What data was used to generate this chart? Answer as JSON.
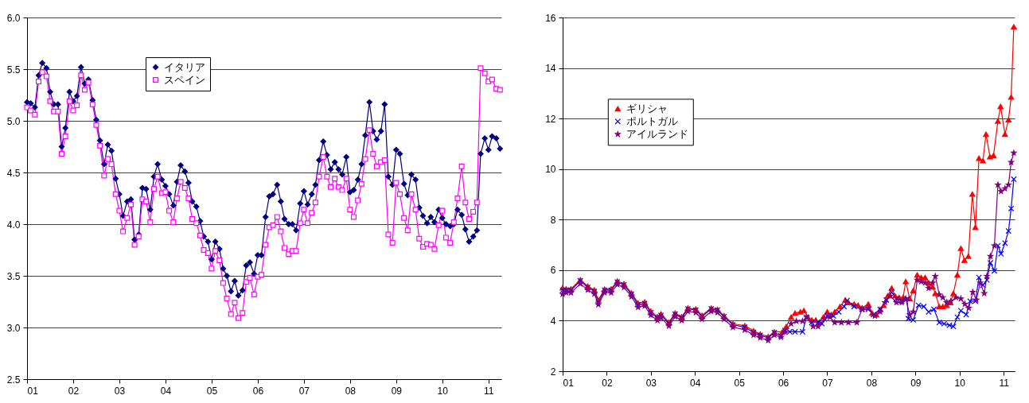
{
  "chart_data": [
    {
      "type": "line",
      "x": [
        2001.0,
        2001.08,
        2001.17,
        2001.25,
        2001.33,
        2001.42,
        2001.5,
        2001.58,
        2001.67,
        2001.75,
        2001.83,
        2001.92,
        2002.0,
        2002.08,
        2002.17,
        2002.25,
        2002.33,
        2002.42,
        2002.5,
        2002.58,
        2002.67,
        2002.75,
        2002.83,
        2002.92,
        2003.0,
        2003.08,
        2003.17,
        2003.25,
        2003.33,
        2003.42,
        2003.5,
        2003.58,
        2003.67,
        2003.75,
        2003.83,
        2003.92,
        2004.0,
        2004.08,
        2004.17,
        2004.25,
        2004.33,
        2004.42,
        2004.5,
        2004.58,
        2004.67,
        2004.75,
        2004.83,
        2004.92,
        2005.0,
        2005.08,
        2005.17,
        2005.25,
        2005.33,
        2005.42,
        2005.5,
        2005.58,
        2005.67,
        2005.75,
        2005.83,
        2005.92,
        2006.0,
        2006.08,
        2006.17,
        2006.25,
        2006.33,
        2006.42,
        2006.5,
        2006.58,
        2006.67,
        2006.75,
        2006.83,
        2006.92,
        2007.0,
        2007.08,
        2007.17,
        2007.25,
        2007.33,
        2007.42,
        2007.5,
        2007.58,
        2007.67,
        2007.75,
        2007.83,
        2007.92,
        2008.0,
        2008.08,
        2008.17,
        2008.25,
        2008.33,
        2008.42,
        2008.5,
        2008.58,
        2008.67,
        2008.75,
        2008.83,
        2008.92,
        2009.0,
        2009.08,
        2009.17,
        2009.25,
        2009.33,
        2009.42,
        2009.5,
        2009.58,
        2009.67,
        2009.75,
        2009.83,
        2009.92,
        2010.0,
        2010.08,
        2010.17,
        2010.25,
        2010.33,
        2010.42,
        2010.5,
        2010.58,
        2010.67,
        2010.75,
        2010.83,
        2010.92,
        2011.0,
        2011.08,
        2011.17,
        2011.25
      ],
      "series": [
        {
          "name": "イタリア",
          "color": "#000080",
          "marker": "diamond",
          "values": [
            5.18,
            5.17,
            5.13,
            5.44,
            5.56,
            5.51,
            5.28,
            5.16,
            5.16,
            4.75,
            4.93,
            5.28,
            5.19,
            5.24,
            5.52,
            5.36,
            5.4,
            5.2,
            5.01,
            4.81,
            4.58,
            4.77,
            4.71,
            4.44,
            4.29,
            4.08,
            4.22,
            4.24,
            3.85,
            3.9,
            4.35,
            4.34,
            4.14,
            4.46,
            4.58,
            4.43,
            4.37,
            4.29,
            4.18,
            4.41,
            4.57,
            4.51,
            4.4,
            4.22,
            4.17,
            4.03,
            3.88,
            3.83,
            3.66,
            3.83,
            3.76,
            3.57,
            3.5,
            3.35,
            3.45,
            3.31,
            3.36,
            3.6,
            3.63,
            3.52,
            3.7,
            3.7,
            4.07,
            4.27,
            4.29,
            4.38,
            4.22,
            4.05,
            4.0,
            4.0,
            3.94,
            4.2,
            4.32,
            4.19,
            4.29,
            4.38,
            4.62,
            4.8,
            4.67,
            4.53,
            4.6,
            4.53,
            4.48,
            4.65,
            4.31,
            4.33,
            4.43,
            4.58,
            4.86,
            5.18,
            4.9,
            4.82,
            4.9,
            5.16,
            4.46,
            4.38,
            4.72,
            4.68,
            4.39,
            4.28,
            4.48,
            4.43,
            4.16,
            4.08,
            4.01,
            4.07,
            4.02,
            4.14,
            4.06,
            4.0,
            3.98,
            4.0,
            4.14,
            4.09,
            3.95,
            3.83,
            3.88,
            3.94,
            4.68,
            4.83,
            4.72,
            4.85,
            4.83,
            4.73
          ]
        },
        {
          "name": "スペイン",
          "color": "#ff00ff",
          "marker": "square",
          "values": [
            5.13,
            5.1,
            5.06,
            5.38,
            5.47,
            5.43,
            5.19,
            5.09,
            5.09,
            4.68,
            4.85,
            5.19,
            5.1,
            5.15,
            5.44,
            5.3,
            5.37,
            5.16,
            4.96,
            4.76,
            4.47,
            4.63,
            4.58,
            4.29,
            4.13,
            3.93,
            4.06,
            4.19,
            3.8,
            3.88,
            4.24,
            4.22,
            4.02,
            4.34,
            4.46,
            4.3,
            4.31,
            4.13,
            4.02,
            4.25,
            4.41,
            4.35,
            4.25,
            4.05,
            4.01,
            3.89,
            3.75,
            3.72,
            3.57,
            3.74,
            3.65,
            3.43,
            3.28,
            3.13,
            3.24,
            3.09,
            3.14,
            3.44,
            3.48,
            3.32,
            3.49,
            3.51,
            3.8,
            3.97,
            3.99,
            4.07,
            3.93,
            3.77,
            3.71,
            3.74,
            3.74,
            4.01,
            4.14,
            4.01,
            4.11,
            4.21,
            4.46,
            4.65,
            4.46,
            4.36,
            4.44,
            4.36,
            4.33,
            4.44,
            4.14,
            4.07,
            4.23,
            4.39,
            4.63,
            4.91,
            4.68,
            4.56,
            4.6,
            4.62,
            3.9,
            3.82,
            4.4,
            4.29,
            4.06,
            3.94,
            4.29,
            4.14,
            3.86,
            3.78,
            3.81,
            3.8,
            3.76,
            3.99,
            4.13,
            3.87,
            3.82,
            4.02,
            4.25,
            4.56,
            4.21,
            4.05,
            4.12,
            4.21,
            5.51,
            5.46,
            5.38,
            5.4,
            5.31,
            5.3
          ]
        }
      ],
      "xlim": [
        2001,
        2011.28
      ],
      "ylim": [
        2.5,
        6.0
      ],
      "xticks": [
        {
          "value": 2001,
          "label": "01"
        },
        {
          "value": 2002,
          "label": "02"
        },
        {
          "value": 2003,
          "label": "03"
        },
        {
          "value": 2004,
          "label": "04"
        },
        {
          "value": 2005,
          "label": "05"
        },
        {
          "value": 2006,
          "label": "06"
        },
        {
          "value": 2007,
          "label": "07"
        },
        {
          "value": 2008,
          "label": "08"
        },
        {
          "value": 2009,
          "label": "09"
        },
        {
          "value": 2010,
          "label": "10"
        },
        {
          "value": 2011,
          "label": "11"
        }
      ],
      "yticks": [
        2.5,
        {
          "value": 3,
          "label": "3.0"
        },
        3.5,
        {
          "value": 4,
          "label": "4.0"
        },
        4.5,
        {
          "value": 5,
          "label": "5.0"
        },
        5.5,
        {
          "value": 6,
          "label": "6.0"
        }
      ],
      "grid": "y",
      "legend": "top left"
    },
    {
      "type": "line",
      "series": [
        {
          "name": "ギリシャ",
          "color": "#ff0000",
          "marker": "triangle",
          "x": [
            2001.0,
            2001.08,
            2001.19,
            2001.4,
            2001.57,
            2001.72,
            2001.81,
            2001.95,
            2002.1,
            2002.24,
            2002.39,
            2002.56,
            2002.71,
            2002.86,
            2003.0,
            2003.15,
            2003.23,
            2003.41,
            2003.55,
            2003.7,
            2003.84,
            2004.02,
            2004.16,
            2004.37,
            2004.51,
            2004.66,
            2004.86,
            2005.13,
            2005.33,
            2005.48,
            2005.66,
            2005.8,
            2005.98,
            2006.07,
            2006.18,
            2006.27,
            2006.39,
            2006.47,
            2006.56,
            2006.65,
            2006.74,
            2006.82,
            2006.91,
            2007.0,
            2007.09,
            2007.17,
            2007.29,
            2007.41,
            2007.48,
            2007.61,
            2007.7,
            2007.79,
            2007.93,
            2008.02,
            2008.11,
            2008.2,
            2008.28,
            2008.37,
            2008.46,
            2008.54,
            2008.63,
            2008.72,
            2008.78,
            2008.87,
            2008.95,
            2009.04,
            2009.13,
            2009.22,
            2009.3,
            2009.39,
            2009.45,
            2009.54,
            2009.62,
            2009.71,
            2009.79,
            2009.86,
            2009.95,
            2010.03,
            2010.11,
            2010.2,
            2010.29,
            2010.36,
            2010.44,
            2010.53,
            2010.6,
            2010.69,
            2010.77,
            2010.87,
            2010.93,
            2011.03,
            2011.11,
            2011.17,
            2011.23
          ],
          "values": [
            5.3,
            5.26,
            5.26,
            5.62,
            5.37,
            5.22,
            4.82,
            5.25,
            5.26,
            5.57,
            5.46,
            5.1,
            4.7,
            4.74,
            4.38,
            4.16,
            4.27,
            3.94,
            4.3,
            4.16,
            4.5,
            4.46,
            4.21,
            4.5,
            4.45,
            4.2,
            3.88,
            3.8,
            3.6,
            3.47,
            3.37,
            3.56,
            3.56,
            3.77,
            4.14,
            4.3,
            4.35,
            4.4,
            4.14,
            4.03,
            4.03,
            3.93,
            4.14,
            4.35,
            4.24,
            4.35,
            4.56,
            4.82,
            4.72,
            4.66,
            4.61,
            4.51,
            4.66,
            4.3,
            4.24,
            4.45,
            4.61,
            4.98,
            5.29,
            4.98,
            4.92,
            4.92,
            5.55,
            4.87,
            5.19,
            5.81,
            5.71,
            5.71,
            5.5,
            5.34,
            5.08,
            4.56,
            4.56,
            4.61,
            4.72,
            5.08,
            5.81,
            6.86,
            6.39,
            6.55,
            9.01,
            7.7,
            10.43,
            10.33,
            11.38,
            10.49,
            10.54,
            11.9,
            12.48,
            11.38,
            11.95,
            12.85,
            15.63
          ]
        },
        {
          "name": "ポルトガル",
          "color": "#0000ff",
          "marker": "cross",
          "x": [
            2001.0,
            2001.08,
            2001.19,
            2001.4,
            2001.57,
            2001.72,
            2001.81,
            2001.95,
            2002.1,
            2002.24,
            2002.39,
            2002.56,
            2002.71,
            2002.86,
            2003.0,
            2003.15,
            2003.23,
            2003.41,
            2003.55,
            2003.7,
            2003.84,
            2004.02,
            2004.16,
            2004.37,
            2004.51,
            2004.66,
            2004.86,
            2005.13,
            2005.33,
            2005.48,
            2005.66,
            2005.8,
            2005.95,
            2006.04,
            2006.15,
            2006.27,
            2006.44,
            2006.53,
            2006.65,
            2006.79,
            2006.88,
            2007.0,
            2007.14,
            2007.26,
            2007.38,
            2007.45,
            2007.61,
            2007.79,
            2007.93,
            2008.05,
            2008.2,
            2008.34,
            2008.46,
            2008.57,
            2008.69,
            2008.81,
            2008.84,
            2008.95,
            2009.07,
            2009.19,
            2009.3,
            2009.42,
            2009.54,
            2009.65,
            2009.77,
            2009.86,
            2009.95,
            2010.03,
            2010.15,
            2010.24,
            2010.36,
            2010.44,
            2010.53,
            2010.62,
            2010.7,
            2010.79,
            2010.87,
            2010.94,
            2011.03,
            2011.11,
            2011.17,
            2011.23
          ],
          "values": [
            5.2,
            5.21,
            5.21,
            5.58,
            5.32,
            5.16,
            4.74,
            5.21,
            5.21,
            5.53,
            5.42,
            5.05,
            4.63,
            4.68,
            4.32,
            4.11,
            4.21,
            3.89,
            4.26,
            4.11,
            4.47,
            4.42,
            4.16,
            4.47,
            4.42,
            4.16,
            3.84,
            3.74,
            3.53,
            3.42,
            3.32,
            3.53,
            3.4,
            3.61,
            3.56,
            3.56,
            3.56,
            4.14,
            3.93,
            3.93,
            3.88,
            4.19,
            4.19,
            4.35,
            4.56,
            4.8,
            4.56,
            4.45,
            4.45,
            4.24,
            4.45,
            4.82,
            5.13,
            4.87,
            4.77,
            4.87,
            4.08,
            4.03,
            4.61,
            4.56,
            4.35,
            4.45,
            3.93,
            3.88,
            3.82,
            3.77,
            4.14,
            4.4,
            4.24,
            4.77,
            4.77,
            5.71,
            5.4,
            5.61,
            6.29,
            5.97,
            6.97,
            6.65,
            7.07,
            7.55,
            8.44,
            9.6
          ]
        },
        {
          "name": "アイルランド",
          "color": "#800080",
          "marker": "star",
          "x": [
            2001.0,
            2001.08,
            2001.19,
            2001.4,
            2001.57,
            2001.72,
            2001.81,
            2001.95,
            2002.1,
            2002.24,
            2002.39,
            2002.56,
            2002.71,
            2002.86,
            2003.0,
            2003.15,
            2003.23,
            2003.41,
            2003.55,
            2003.7,
            2003.84,
            2004.02,
            2004.16,
            2004.37,
            2004.51,
            2004.66,
            2004.86,
            2005.13,
            2005.33,
            2005.48,
            2005.66,
            2005.8,
            2005.95,
            2006.04,
            2006.18,
            2006.3,
            2006.44,
            2006.53,
            2006.68,
            2006.79,
            2006.94,
            2007.06,
            2007.17,
            2007.32,
            2007.48,
            2007.67,
            2007.79,
            2007.93,
            2008.08,
            2008.2,
            2008.31,
            2008.43,
            2008.57,
            2008.69,
            2008.78,
            2008.87,
            2008.95,
            2009.04,
            2009.13,
            2009.22,
            2009.3,
            2009.39,
            2009.45,
            2009.54,
            2009.62,
            2009.71,
            2009.8,
            2009.92,
            2010.03,
            2010.12,
            2010.21,
            2010.3,
            2010.38,
            2010.47,
            2010.56,
            2010.62,
            2010.7,
            2010.79,
            2010.87,
            2010.94,
            2011.03,
            2011.11,
            2011.17,
            2011.23
          ],
          "values": [
            5.05,
            5.11,
            5.11,
            5.46,
            5.22,
            5.06,
            4.64,
            5.11,
            5.11,
            5.43,
            5.32,
            4.95,
            4.53,
            4.58,
            4.22,
            4.01,
            4.11,
            3.79,
            4.16,
            4.01,
            4.37,
            4.32,
            4.06,
            4.37,
            4.32,
            4.06,
            3.74,
            3.64,
            3.43,
            3.32,
            3.22,
            3.43,
            3.35,
            3.56,
            3.88,
            3.98,
            3.98,
            4.14,
            3.77,
            3.77,
            4.08,
            4.14,
            3.93,
            3.93,
            3.93,
            3.93,
            4.45,
            4.5,
            4.19,
            4.35,
            4.72,
            4.98,
            4.72,
            4.72,
            4.87,
            4.24,
            4.35,
            5.61,
            5.55,
            5.5,
            5.29,
            5.5,
            5.76,
            5.03,
            4.92,
            4.72,
            4.77,
            4.92,
            4.87,
            4.66,
            4.5,
            5.13,
            4.82,
            5.5,
            5.08,
            5.76,
            6.55,
            6.97,
            9.38,
            9.12,
            9.23,
            9.38,
            10.27,
            10.64
          ]
        }
      ],
      "xlim": [
        2001,
        2011.25
      ],
      "ylim": [
        2,
        16
      ],
      "xticks": [
        {
          "value": 2001,
          "label": "01"
        },
        {
          "value": 2002,
          "label": "02"
        },
        {
          "value": 2003,
          "label": "03"
        },
        {
          "value": 2004,
          "label": "04"
        },
        {
          "value": 2005,
          "label": "05"
        },
        {
          "value": 2006,
          "label": "06"
        },
        {
          "value": 2007,
          "label": "07"
        },
        {
          "value": 2008,
          "label": "08"
        },
        {
          "value": 2009,
          "label": "09"
        },
        {
          "value": 2010,
          "label": "10"
        },
        {
          "value": 2011,
          "label": "11"
        }
      ],
      "yticks": [
        2,
        4,
        6,
        8,
        10,
        12,
        14,
        16
      ],
      "grid": "y",
      "legend": "left"
    }
  ]
}
